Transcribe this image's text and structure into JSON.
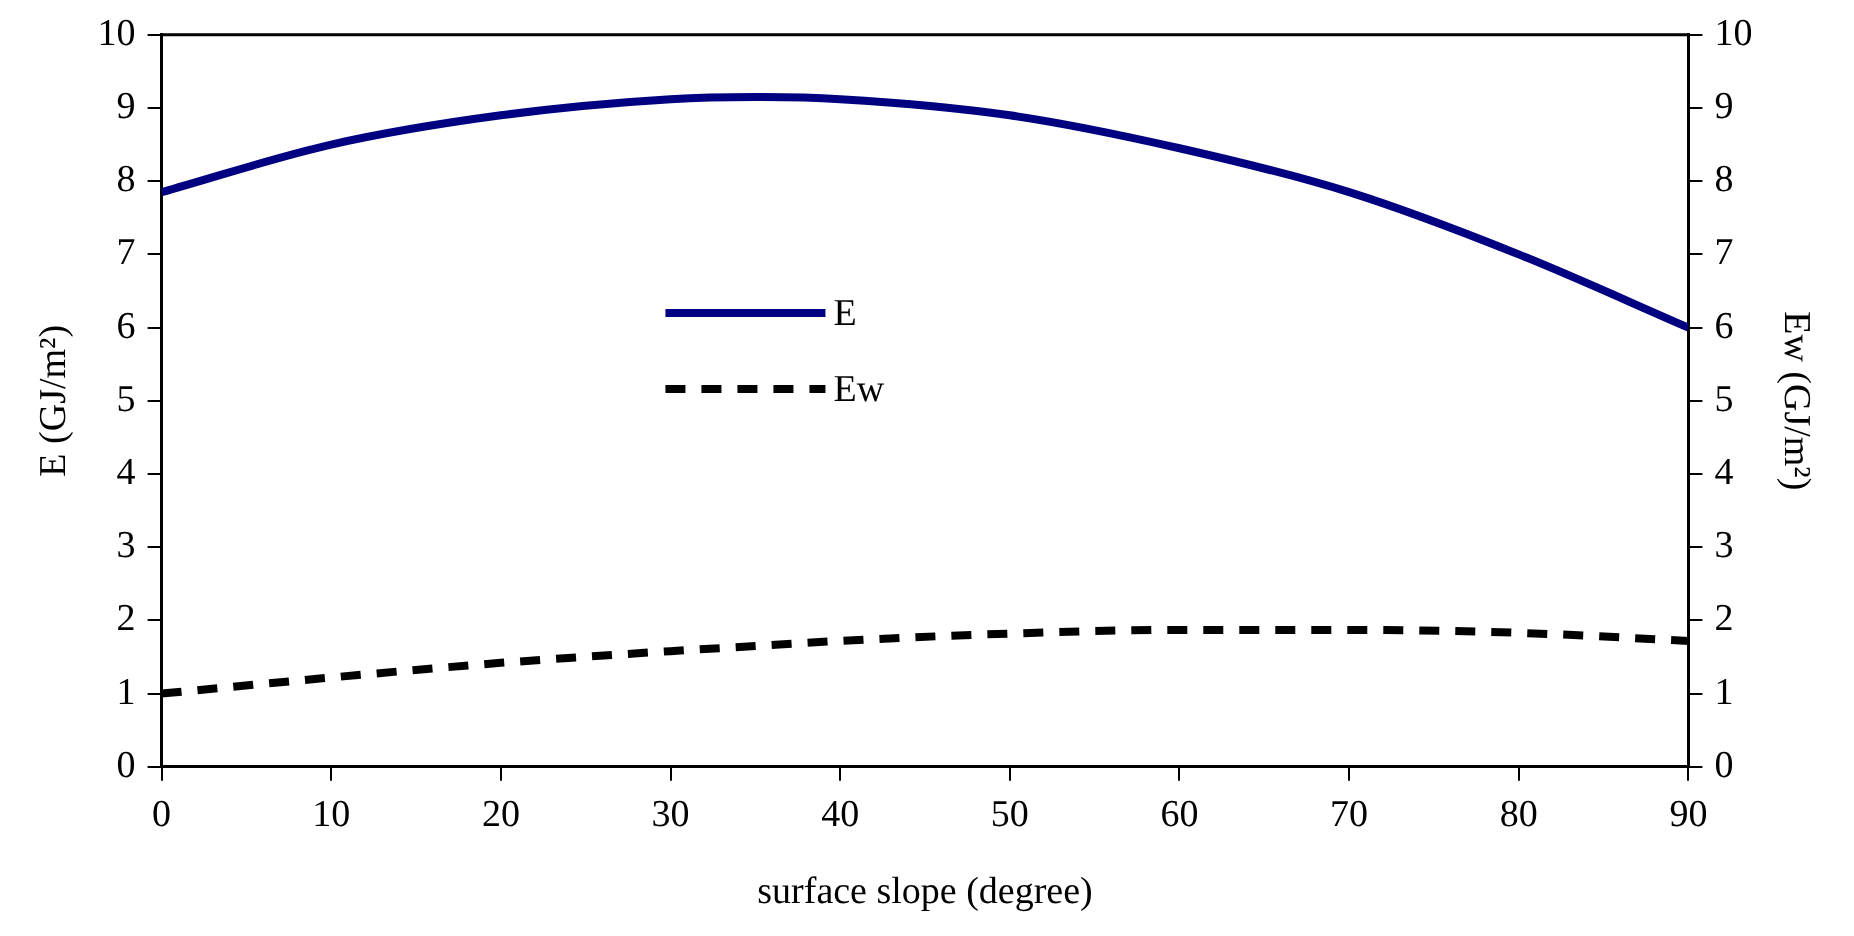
{
  "chart_data": {
    "type": "line",
    "xlabel": "surface slope (degree)",
    "ylabel": "E (GJ/m²)",
    "y2label": "Ew (GJ/m²)",
    "x": [
      0,
      10,
      20,
      30,
      35,
      40,
      50,
      60,
      70,
      80,
      90
    ],
    "series": [
      {
        "name": "E",
        "color": "#000080",
        "line_style": "solid",
        "values": [
          7.85,
          8.5,
          8.9,
          9.12,
          9.15,
          9.12,
          8.9,
          8.45,
          7.85,
          7.0,
          6.0
        ]
      },
      {
        "name": "Ew",
        "color": "#000000",
        "line_style": "dashed",
        "values": [
          1.0,
          1.22,
          1.42,
          1.58,
          1.65,
          1.72,
          1.82,
          1.87,
          1.87,
          1.83,
          1.72
        ]
      }
    ],
    "xlim": [
      0,
      90
    ],
    "xticks": [
      0,
      10,
      20,
      30,
      40,
      50,
      60,
      70,
      80,
      90
    ],
    "ylim": [
      0,
      10
    ],
    "yticks": [
      0,
      1,
      2,
      3,
      4,
      5,
      6,
      7,
      8,
      9,
      10
    ],
    "y2lim": [
      0,
      10
    ],
    "y2ticks": [
      0,
      1,
      2,
      3,
      4,
      5,
      6,
      7,
      8,
      9,
      10
    ],
    "grid": false,
    "legend": "center",
    "marker": "none"
  }
}
